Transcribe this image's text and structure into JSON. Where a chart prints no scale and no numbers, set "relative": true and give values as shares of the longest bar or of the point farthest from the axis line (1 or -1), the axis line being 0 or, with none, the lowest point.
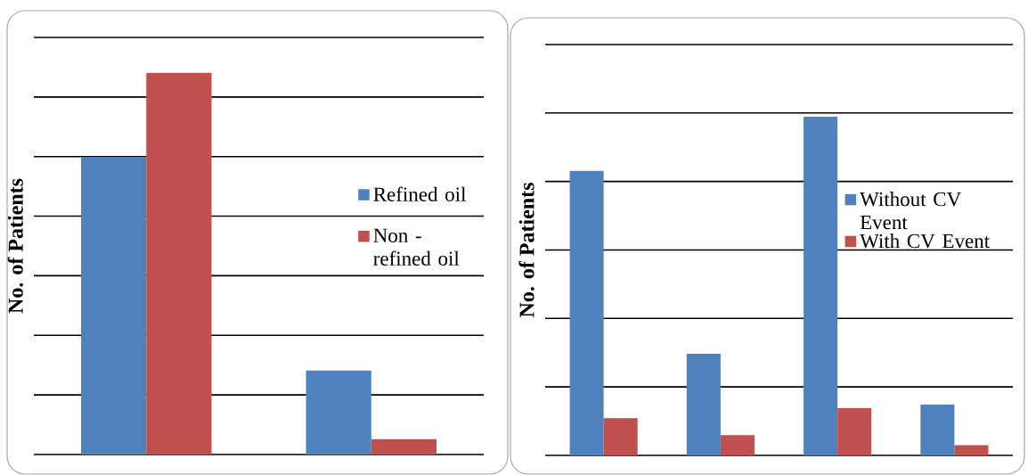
{
  "chart_data": [
    {
      "type": "bar",
      "relative": true,
      "ylabel": "No. of Patients",
      "categories": [
        null,
        null
      ],
      "grid": "y",
      "legend": "right",
      "series": [
        {
          "name": "Refined oil",
          "color": "#4f81bd",
          "values": [
            0.78,
            0.22
          ]
        },
        {
          "name": "Non - refined oil",
          "color": "#c0504d",
          "values": [
            1,
            0.04
          ]
        }
      ]
    },
    {
      "type": "bar",
      "relative": true,
      "ylabel": "No. of Patients",
      "categories": [
        null,
        null,
        null,
        null
      ],
      "grid": "y",
      "legend": "right",
      "series": [
        {
          "name": "Without CV Event",
          "color": "#4f81bd",
          "values": [
            0.84,
            0.3,
            1,
            0.15
          ]
        },
        {
          "name": "With CV Event",
          "color": "#c0504d",
          "values": [
            0.11,
            0.06,
            0.14,
            0.03
          ]
        }
      ]
    }
  ]
}
